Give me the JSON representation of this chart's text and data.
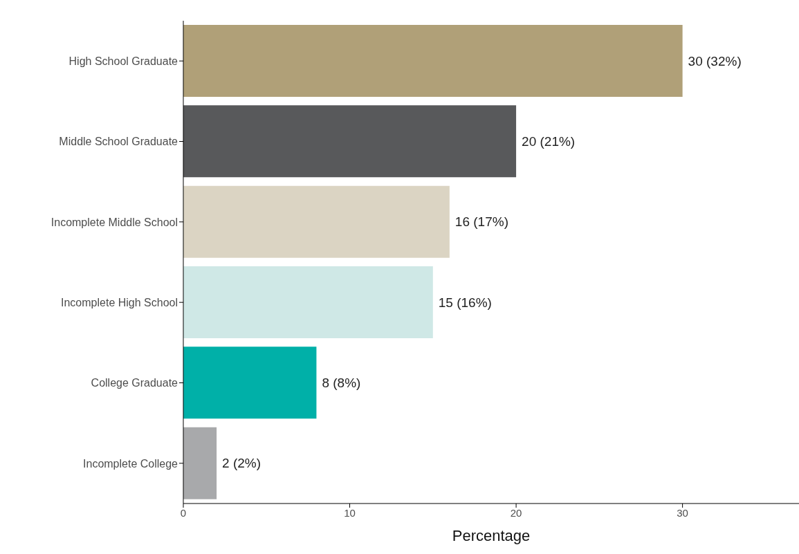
{
  "chart_data": {
    "type": "bar",
    "orientation": "horizontal",
    "xlabel": "Percentage",
    "categories": [
      "High School Graduate",
      "Middle School Graduate",
      "Incomplete Middle School",
      "Incomplete High School",
      "College Graduate",
      "Incomplete College"
    ],
    "values": [
      30,
      20,
      16,
      15,
      8,
      2
    ],
    "colors": [
      "#b0a078",
      "#58595b",
      "#dbd4c3",
      "#cfe8e6",
      "#00b0a8",
      "#a8a9ab"
    ],
    "value_labels": [
      "30 (32%)",
      "20 (21%)",
      "16 (17%)",
      "15 (16%)",
      "8 (8%)",
      "2 (2%)"
    ],
    "xlim": [
      0,
      37
    ],
    "xticks": [
      0,
      10,
      20,
      30
    ],
    "grid": false,
    "legend": false
  }
}
